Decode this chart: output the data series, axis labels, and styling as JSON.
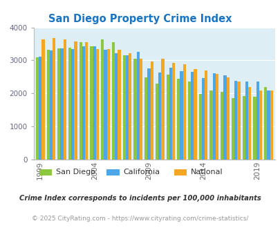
{
  "title": "San Diego Property Crime Index",
  "years": [
    1999,
    2000,
    2001,
    2002,
    2003,
    2004,
    2005,
    2006,
    2007,
    2008,
    2009,
    2010,
    2011,
    2012,
    2013,
    2014,
    2015,
    2016,
    2017,
    2018,
    2019,
    2020
  ],
  "san_diego": [
    3100,
    3330,
    3370,
    3380,
    3550,
    3430,
    3630,
    3560,
    3150,
    3050,
    2490,
    2300,
    2580,
    2440,
    2370,
    1980,
    2080,
    2040,
    1870,
    1930,
    1910,
    2200
  ],
  "california": [
    3110,
    3300,
    3360,
    3350,
    3430,
    3420,
    3320,
    3220,
    3150,
    3260,
    2750,
    2630,
    2770,
    2680,
    2660,
    2470,
    2620,
    2560,
    2390,
    2370,
    2360,
    2100
  ],
  "national": [
    3630,
    3680,
    3640,
    3570,
    3560,
    3350,
    3340,
    3330,
    3220,
    3050,
    2970,
    3060,
    2920,
    2890,
    2740,
    2700,
    2600,
    2490,
    2370,
    2200,
    2100,
    2080
  ],
  "colors": {
    "san_diego": "#8dc63f",
    "california": "#4da6e8",
    "national": "#f5a623"
  },
  "bg_color": "#ddeef5",
  "ylim": [
    0,
    4000
  ],
  "yticks": [
    0,
    1000,
    2000,
    3000,
    4000
  ],
  "xtick_years": [
    1999,
    2004,
    2009,
    2014,
    2019
  ],
  "legend_labels": [
    "San Diego",
    "California",
    "National"
  ],
  "footnote1": "Crime Index corresponds to incidents per 100,000 inhabitants",
  "footnote2": "© 2025 CityRating.com - https://www.cityrating.com/crime-statistics/",
  "title_color": "#1a75c4",
  "footnote1_color": "#333333",
  "footnote2_color": "#999999",
  "bar_width": 0.27
}
